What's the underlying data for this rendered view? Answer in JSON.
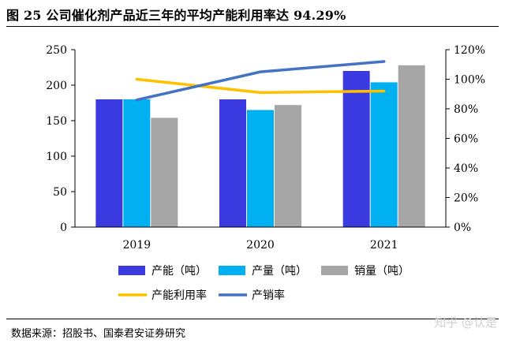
{
  "title": "图 25 公司催化剂产品近三年的平均产能利用率达 94.29%",
  "source": "数据来源：招股书、国泰君安证券研究",
  "watermark": "知乎 @认是",
  "colors": {
    "capacity": "#3a3ae0",
    "output": "#00b0f0",
    "sales": "#a6a6a6",
    "utilization": "#ffc000",
    "sales_rate": "#4472c4"
  },
  "chart_data": {
    "type": "bar",
    "categories": [
      "2019",
      "2020",
      "2021"
    ],
    "series": [
      {
        "name": "产能（吨）",
        "kind": "bar",
        "axis": "left",
        "color_key": "capacity",
        "values": [
          180,
          180,
          220
        ]
      },
      {
        "name": "产量（吨）",
        "kind": "bar",
        "axis": "left",
        "color_key": "output",
        "values": [
          180,
          165,
          204
        ]
      },
      {
        "name": "销量（吨）",
        "kind": "bar",
        "axis": "left",
        "color_key": "sales",
        "values": [
          154,
          172,
          228
        ]
      },
      {
        "name": "产能利用率",
        "kind": "line",
        "axis": "right",
        "color_key": "utilization",
        "values": [
          1.0,
          0.91,
          0.92
        ]
      },
      {
        "name": "产销率",
        "kind": "line",
        "axis": "right",
        "color_key": "sales_rate",
        "values": [
          0.86,
          1.05,
          1.12
        ]
      }
    ],
    "ylim": [
      0,
      250
    ],
    "yticks": [
      0,
      50,
      100,
      150,
      200,
      250
    ],
    "y2lim": [
      0,
      1.2
    ],
    "y2ticks": [
      "0%",
      "20%",
      "40%",
      "60%",
      "80%",
      "100%",
      "120%"
    ],
    "legend": "bottom",
    "grid": false
  }
}
